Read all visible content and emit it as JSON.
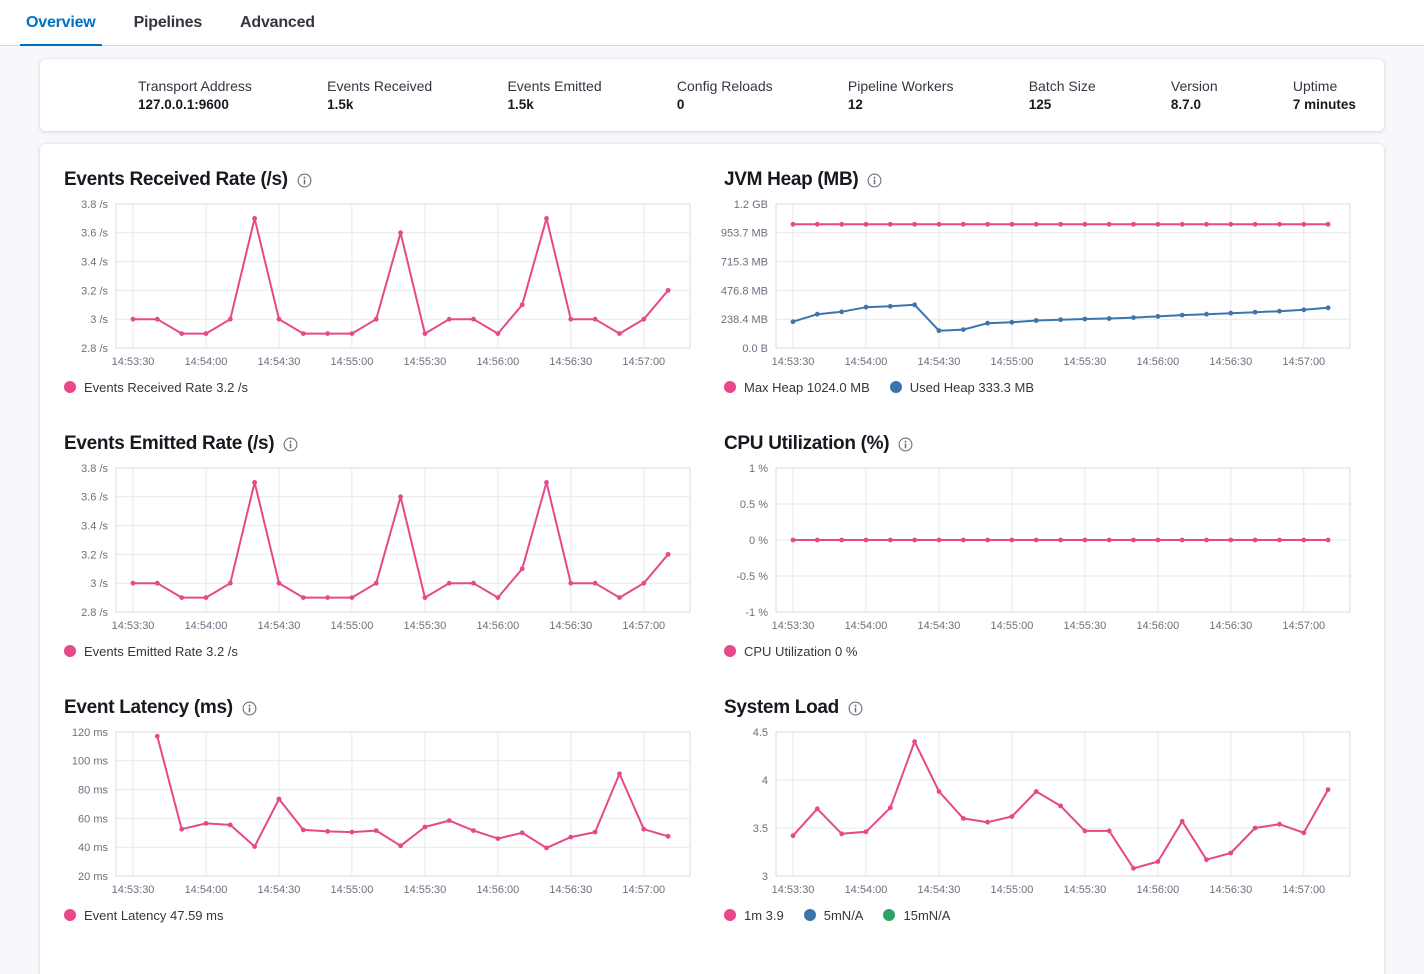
{
  "tabs": [
    {
      "label": "Overview",
      "active": true
    },
    {
      "label": "Pipelines",
      "active": false
    },
    {
      "label": "Advanced",
      "active": false
    }
  ],
  "summary": {
    "items": [
      {
        "label": "Transport Address",
        "value": "127.0.0.1:9600"
      },
      {
        "label": "Events Received",
        "value": "1.5k"
      },
      {
        "label": "Events Emitted",
        "value": "1.5k"
      },
      {
        "label": "Config Reloads",
        "value": "0"
      },
      {
        "label": "Pipeline Workers",
        "value": "12"
      },
      {
        "label": "Batch Size",
        "value": "125"
      },
      {
        "label": "Version",
        "value": "8.7.0"
      },
      {
        "label": "Uptime",
        "value": "7 minutes"
      }
    ]
  },
  "colors": {
    "accent_blue": "#0071C2",
    "series_pink": "#E6488A",
    "series_blue": "#3C74AE",
    "series_green": "#2EA365",
    "grid": "#E8E9EB",
    "plot_border": "#D9DBDF",
    "tick_label": "#69707D"
  },
  "chart_data": [
    {
      "id": "events-received-rate",
      "type": "line",
      "title": "Events Received Rate (/s)",
      "y_domain": [
        2.8,
        3.8
      ],
      "y_ticks": [
        {
          "v": 2.8,
          "label": "2.8 /s"
        },
        {
          "v": 3.0,
          "label": "3 /s"
        },
        {
          "v": 3.2,
          "label": "3.2 /s"
        },
        {
          "v": 3.4,
          "label": "3.4 /s"
        },
        {
          "v": 3.6,
          "label": "3.6 /s"
        },
        {
          "v": 3.8,
          "label": "3.8 /s"
        }
      ],
      "x_ticks": [
        {
          "t": 0,
          "label": "14:53:30"
        },
        {
          "t": 30,
          "label": "14:54:00"
        },
        {
          "t": 60,
          "label": "14:54:30"
        },
        {
          "t": 90,
          "label": "14:55:00"
        },
        {
          "t": 120,
          "label": "14:55:30"
        },
        {
          "t": 150,
          "label": "14:56:00"
        },
        {
          "t": 180,
          "label": "14:56:30"
        },
        {
          "t": 210,
          "label": "14:57:00"
        }
      ],
      "series": [
        {
          "name": "Events Received Rate",
          "color": "#E6488A",
          "t0": 0,
          "dt": 10,
          "values": [
            3.0,
            3.0,
            2.9,
            2.9,
            3.0,
            3.7,
            3.0,
            2.9,
            2.9,
            2.9,
            3.0,
            3.6,
            2.9,
            3.0,
            3.0,
            2.9,
            3.1,
            3.7,
            3.0,
            3.0,
            2.9,
            3.0,
            3.2
          ]
        }
      ],
      "legend": [
        {
          "color": "#E6488A",
          "label": "Events Received Rate 3.2 /s"
        }
      ]
    },
    {
      "id": "jvm-heap",
      "type": "line",
      "title": "JVM Heap (MB)",
      "y_domain": [
        0,
        1192.1
      ],
      "y_ticks": [
        {
          "v": 0,
          "label": "0.0 B"
        },
        {
          "v": 238.4,
          "label": "238.4 MB"
        },
        {
          "v": 476.8,
          "label": "476.8 MB"
        },
        {
          "v": 715.3,
          "label": "715.3 MB"
        },
        {
          "v": 953.7,
          "label": "953.7 MB"
        },
        {
          "v": 1192.1,
          "label": "1.2 GB"
        }
      ],
      "x_ticks": [
        {
          "t": 0,
          "label": "14:53:30"
        },
        {
          "t": 30,
          "label": "14:54:00"
        },
        {
          "t": 60,
          "label": "14:54:30"
        },
        {
          "t": 90,
          "label": "14:55:00"
        },
        {
          "t": 120,
          "label": "14:55:30"
        },
        {
          "t": 150,
          "label": "14:56:00"
        },
        {
          "t": 180,
          "label": "14:56:30"
        },
        {
          "t": 210,
          "label": "14:57:00"
        }
      ],
      "series": [
        {
          "name": "Max Heap",
          "color": "#E6488A",
          "t0": 0,
          "dt": 10,
          "values": [
            1024,
            1024,
            1024,
            1024,
            1024,
            1024,
            1024,
            1024,
            1024,
            1024,
            1024,
            1024,
            1024,
            1024,
            1024,
            1024,
            1024,
            1024,
            1024,
            1024,
            1024,
            1024,
            1024
          ]
        },
        {
          "name": "Used Heap",
          "color": "#3C74AE",
          "t0": 0,
          "dt": 10,
          "values": [
            218,
            280,
            300,
            338,
            345,
            358,
            143,
            152,
            205,
            213,
            228,
            234,
            240,
            244,
            252,
            262,
            272,
            280,
            288,
            296,
            305,
            316,
            333
          ]
        }
      ],
      "legend": [
        {
          "color": "#E6488A",
          "label": "Max Heap 1024.0 MB"
        },
        {
          "color": "#3C74AE",
          "label": "Used Heap 333.3 MB"
        }
      ]
    },
    {
      "id": "events-emitted-rate",
      "type": "line",
      "title": "Events Emitted Rate (/s)",
      "y_domain": [
        2.8,
        3.8
      ],
      "y_ticks": [
        {
          "v": 2.8,
          "label": "2.8 /s"
        },
        {
          "v": 3.0,
          "label": "3 /s"
        },
        {
          "v": 3.2,
          "label": "3.2 /s"
        },
        {
          "v": 3.4,
          "label": "3.4 /s"
        },
        {
          "v": 3.6,
          "label": "3.6 /s"
        },
        {
          "v": 3.8,
          "label": "3.8 /s"
        }
      ],
      "x_ticks": [
        {
          "t": 0,
          "label": "14:53:30"
        },
        {
          "t": 30,
          "label": "14:54:00"
        },
        {
          "t": 60,
          "label": "14:54:30"
        },
        {
          "t": 90,
          "label": "14:55:00"
        },
        {
          "t": 120,
          "label": "14:55:30"
        },
        {
          "t": 150,
          "label": "14:56:00"
        },
        {
          "t": 180,
          "label": "14:56:30"
        },
        {
          "t": 210,
          "label": "14:57:00"
        }
      ],
      "series": [
        {
          "name": "Events Emitted Rate",
          "color": "#E6488A",
          "t0": 0,
          "dt": 10,
          "values": [
            3.0,
            3.0,
            2.9,
            2.9,
            3.0,
            3.7,
            3.0,
            2.9,
            2.9,
            2.9,
            3.0,
            3.6,
            2.9,
            3.0,
            3.0,
            2.9,
            3.1,
            3.7,
            3.0,
            3.0,
            2.9,
            3.0,
            3.2
          ]
        }
      ],
      "legend": [
        {
          "color": "#E6488A",
          "label": "Events Emitted Rate 3.2 /s"
        }
      ]
    },
    {
      "id": "cpu-utilization",
      "type": "line",
      "title": "CPU Utilization (%)",
      "y_domain": [
        -1,
        1
      ],
      "y_ticks": [
        {
          "v": -1,
          "label": "-1 %"
        },
        {
          "v": -0.5,
          "label": "-0.5 %"
        },
        {
          "v": 0,
          "label": "0 %"
        },
        {
          "v": 0.5,
          "label": "0.5 %"
        },
        {
          "v": 1,
          "label": "1 %"
        }
      ],
      "x_ticks": [
        {
          "t": 0,
          "label": "14:53:30"
        },
        {
          "t": 30,
          "label": "14:54:00"
        },
        {
          "t": 60,
          "label": "14:54:30"
        },
        {
          "t": 90,
          "label": "14:55:00"
        },
        {
          "t": 120,
          "label": "14:55:30"
        },
        {
          "t": 150,
          "label": "14:56:00"
        },
        {
          "t": 180,
          "label": "14:56:30"
        },
        {
          "t": 210,
          "label": "14:57:00"
        }
      ],
      "series": [
        {
          "name": "CPU Utilization",
          "color": "#E6488A",
          "t0": 0,
          "dt": 10,
          "values": [
            0,
            0,
            0,
            0,
            0,
            0,
            0,
            0,
            0,
            0,
            0,
            0,
            0,
            0,
            0,
            0,
            0,
            0,
            0,
            0,
            0,
            0,
            0
          ]
        }
      ],
      "legend": [
        {
          "color": "#E6488A",
          "label": "CPU Utilization 0 %"
        }
      ]
    },
    {
      "id": "event-latency",
      "type": "line",
      "title": "Event Latency (ms)",
      "y_domain": [
        20,
        120
      ],
      "y_ticks": [
        {
          "v": 20,
          "label": "20 ms"
        },
        {
          "v": 40,
          "label": "40 ms"
        },
        {
          "v": 60,
          "label": "60 ms"
        },
        {
          "v": 80,
          "label": "80 ms"
        },
        {
          "v": 100,
          "label": "100 ms"
        },
        {
          "v": 120,
          "label": "120 ms"
        }
      ],
      "x_ticks": [
        {
          "t": 0,
          "label": "14:53:30"
        },
        {
          "t": 30,
          "label": "14:54:00"
        },
        {
          "t": 60,
          "label": "14:54:30"
        },
        {
          "t": 90,
          "label": "14:55:00"
        },
        {
          "t": 120,
          "label": "14:55:30"
        },
        {
          "t": 150,
          "label": "14:56:00"
        },
        {
          "t": 180,
          "label": "14:56:30"
        },
        {
          "t": 210,
          "label": "14:57:00"
        }
      ],
      "series": [
        {
          "name": "Event Latency",
          "color": "#E6488A",
          "t0": 10,
          "dt": 10,
          "values": [
            117,
            52.5,
            56.5,
            55.5,
            40.5,
            73.5,
            52,
            51,
            50.5,
            51.5,
            41,
            54,
            58.5,
            51.5,
            46,
            50,
            39.5,
            47,
            50.5,
            91,
            52.5,
            47.59
          ]
        }
      ],
      "legend": [
        {
          "color": "#E6488A",
          "label": "Event Latency 47.59 ms"
        }
      ]
    },
    {
      "id": "system-load",
      "type": "line",
      "title": "System Load",
      "y_domain": [
        3,
        4.5
      ],
      "y_ticks": [
        {
          "v": 3,
          "label": "3"
        },
        {
          "v": 3.5,
          "label": "3.5"
        },
        {
          "v": 4,
          "label": "4"
        },
        {
          "v": 4.5,
          "label": "4.5"
        }
      ],
      "x_ticks": [
        {
          "t": 0,
          "label": "14:53:30"
        },
        {
          "t": 30,
          "label": "14:54:00"
        },
        {
          "t": 60,
          "label": "14:54:30"
        },
        {
          "t": 90,
          "label": "14:55:00"
        },
        {
          "t": 120,
          "label": "14:55:30"
        },
        {
          "t": 150,
          "label": "14:56:00"
        },
        {
          "t": 180,
          "label": "14:56:30"
        },
        {
          "t": 210,
          "label": "14:57:00"
        }
      ],
      "series": [
        {
          "name": "1m",
          "color": "#E6488A",
          "t0": 0,
          "dt": 10,
          "values": [
            3.42,
            3.7,
            3.44,
            3.46,
            3.71,
            4.4,
            3.88,
            3.6,
            3.56,
            3.62,
            3.88,
            3.73,
            3.47,
            3.47,
            3.08,
            3.15,
            3.57,
            3.17,
            3.24,
            3.5,
            3.54,
            3.45,
            3.9
          ]
        }
      ],
      "legend": [
        {
          "color": "#E6488A",
          "label": "1m 3.9"
        },
        {
          "color": "#3C74AE",
          "label": "5mN/A"
        },
        {
          "color": "#2EA365",
          "label": "15mN/A"
        }
      ]
    }
  ]
}
